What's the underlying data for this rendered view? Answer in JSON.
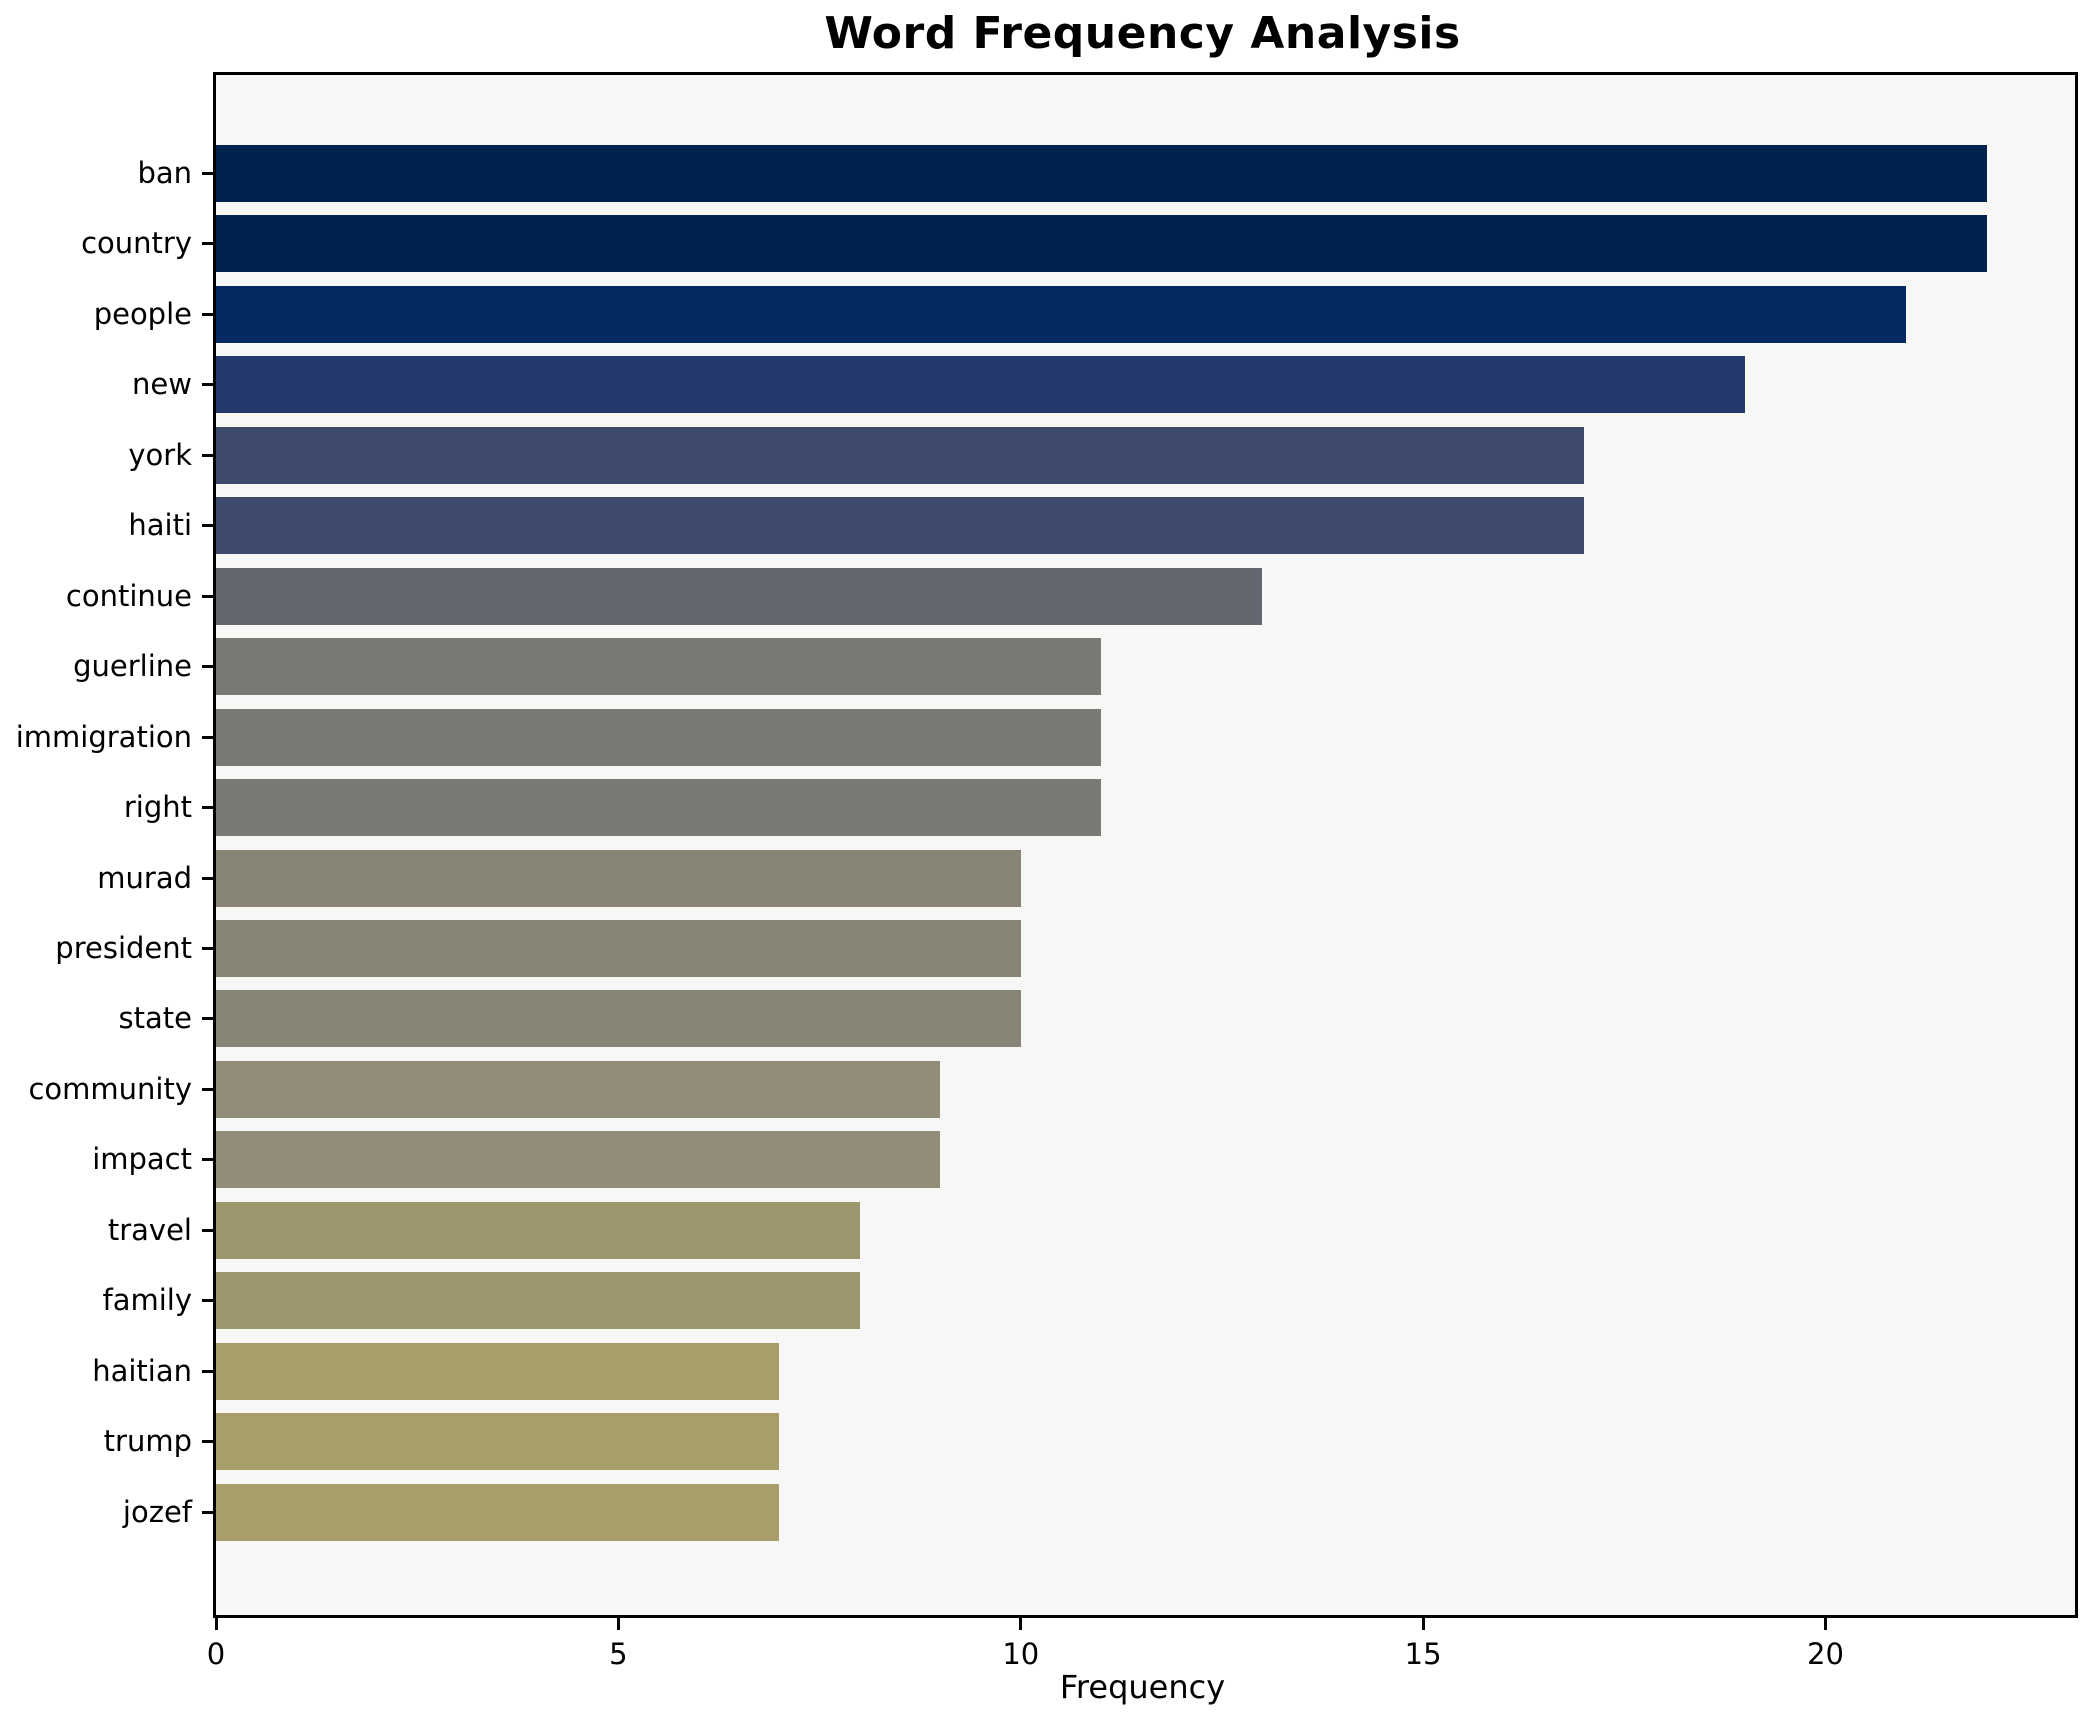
{
  "chart_data": {
    "type": "bar",
    "orientation": "horizontal",
    "title": "Word Frequency Analysis",
    "xlabel": "Frequency",
    "ylabel": "",
    "categories": [
      "ban",
      "country",
      "people",
      "new",
      "york",
      "haiti",
      "continue",
      "guerline",
      "immigration",
      "right",
      "murad",
      "president",
      "state",
      "community",
      "impact",
      "travel",
      "family",
      "haitian",
      "trump",
      "jozef"
    ],
    "values": [
      22,
      22,
      21,
      19,
      17,
      17,
      13,
      11,
      11,
      11,
      10,
      10,
      10,
      9,
      9,
      8,
      8,
      7,
      7,
      7
    ],
    "bar_colors": [
      "#00224e",
      "#00224e",
      "#042a60",
      "#243a6c",
      "#3e4a6c",
      "#3e4a6c",
      "#64676f",
      "#797a73",
      "#797a73",
      "#797a73",
      "#878476",
      "#878476",
      "#878476",
      "#918d78",
      "#918d78",
      "#9d976f",
      "#9d976f",
      "#a79e69",
      "#a79e69",
      "#a79e69"
    ],
    "xlim": [
      0,
      23.1
    ],
    "xticks": [
      0,
      5,
      10,
      15,
      20
    ],
    "grid": false,
    "legend_position": "none",
    "plot_bg": "#f7f7f5",
    "figure_bg": "#ffffff",
    "spine_color": "#000000"
  }
}
